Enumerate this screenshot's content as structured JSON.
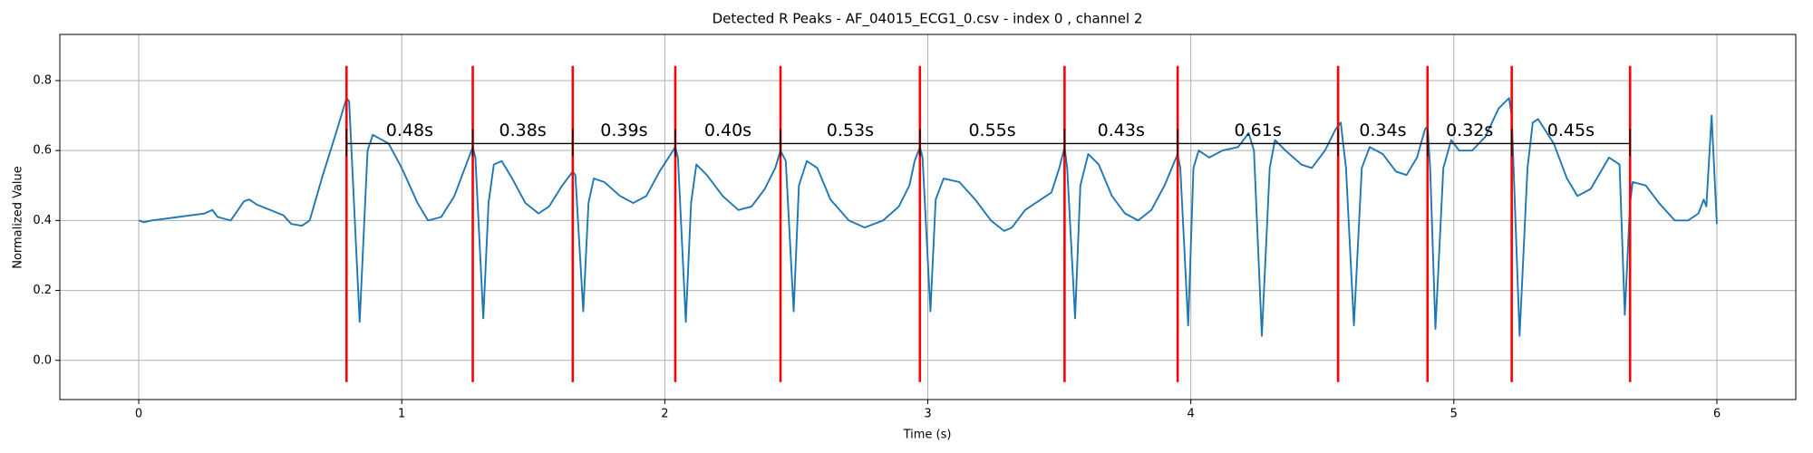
{
  "chart_data": {
    "type": "line",
    "title": "Detected R Peaks - AF_04015_ECG1_0.csv - index 0 , channel 2",
    "x_label": "Time (s)",
    "y_label": "Normalized Value",
    "xlim": [
      -0.3,
      6.3
    ],
    "ylim": [
      -0.112,
      0.932
    ],
    "xticks": [
      0,
      1,
      2,
      3,
      4,
      5,
      6
    ],
    "yticks": [
      {
        "value": 0,
        "label": "0.0"
      },
      0.2,
      0.4,
      0.6,
      0.8
    ],
    "grid": true,
    "series": [
      {
        "color": "#1f77b4",
        "x": [
          0,
          0.02,
          0.05,
          0.1,
          0.15,
          0.2,
          0.25,
          0.28,
          0.3,
          0.35,
          0.4,
          0.42,
          0.45,
          0.5,
          0.55,
          0.58,
          0.62,
          0.65,
          0.7,
          0.75,
          0.79,
          0.8,
          0.84,
          0.87,
          0.89,
          0.95,
          1.0,
          1.06,
          1.1,
          1.15,
          1.2,
          1.24,
          1.27,
          1.28,
          1.31,
          1.33,
          1.35,
          1.38,
          1.42,
          1.47,
          1.52,
          1.56,
          1.61,
          1.65,
          1.66,
          1.69,
          1.71,
          1.73,
          1.77,
          1.83,
          1.88,
          1.93,
          1.98,
          2.04,
          2.05,
          2.08,
          2.1,
          2.12,
          2.16,
          2.22,
          2.28,
          2.33,
          2.38,
          2.42,
          2.44,
          2.46,
          2.49,
          2.51,
          2.54,
          2.58,
          2.63,
          2.7,
          2.76,
          2.83,
          2.89,
          2.93,
          2.95,
          2.97,
          2.98,
          3.01,
          3.03,
          3.06,
          3.12,
          3.18,
          3.24,
          3.29,
          3.32,
          3.37,
          3.43,
          3.47,
          3.5,
          3.52,
          3.53,
          3.56,
          3.58,
          3.61,
          3.65,
          3.7,
          3.75,
          3.8,
          3.85,
          3.9,
          3.95,
          3.96,
          3.99,
          4.01,
          4.03,
          4.07,
          4.12,
          4.18,
          4.22,
          4.24,
          4.27,
          4.3,
          4.32,
          4.36,
          4.42,
          4.46,
          4.51,
          4.55,
          4.57,
          4.59,
          4.62,
          4.65,
          4.68,
          4.73,
          4.78,
          4.82,
          4.86,
          4.89,
          4.9,
          4.91,
          4.93,
          4.96,
          4.99,
          5.02,
          5.07,
          5.12,
          5.17,
          5.21,
          5.22,
          5.25,
          5.28,
          5.3,
          5.32,
          5.38,
          5.43,
          5.47,
          5.52,
          5.59,
          5.63,
          5.65,
          5.67,
          5.68,
          5.73,
          5.78,
          5.84,
          5.89,
          5.93,
          5.95,
          5.96,
          5.98,
          6.0
        ],
        "values": [
          0.4,
          0.395,
          0.4,
          0.405,
          0.41,
          0.415,
          0.42,
          0.43,
          0.41,
          0.4,
          0.455,
          0.46,
          0.445,
          0.43,
          0.415,
          0.39,
          0.385,
          0.4,
          0.53,
          0.65,
          0.75,
          0.74,
          0.11,
          0.6,
          0.645,
          0.62,
          0.55,
          0.45,
          0.4,
          0.41,
          0.47,
          0.55,
          0.61,
          0.58,
          0.12,
          0.45,
          0.56,
          0.57,
          0.52,
          0.45,
          0.42,
          0.44,
          0.5,
          0.54,
          0.53,
          0.14,
          0.45,
          0.52,
          0.51,
          0.47,
          0.45,
          0.47,
          0.54,
          0.61,
          0.58,
          0.11,
          0.45,
          0.56,
          0.53,
          0.47,
          0.43,
          0.44,
          0.49,
          0.55,
          0.6,
          0.57,
          0.14,
          0.5,
          0.57,
          0.55,
          0.46,
          0.4,
          0.38,
          0.4,
          0.44,
          0.5,
          0.57,
          0.61,
          0.58,
          0.14,
          0.46,
          0.52,
          0.51,
          0.46,
          0.4,
          0.37,
          0.38,
          0.43,
          0.46,
          0.48,
          0.55,
          0.61,
          0.55,
          0.12,
          0.5,
          0.59,
          0.56,
          0.47,
          0.42,
          0.4,
          0.43,
          0.5,
          0.59,
          0.55,
          0.1,
          0.55,
          0.6,
          0.58,
          0.6,
          0.61,
          0.65,
          0.6,
          0.07,
          0.55,
          0.63,
          0.6,
          0.56,
          0.55,
          0.6,
          0.66,
          0.68,
          0.55,
          0.1,
          0.55,
          0.61,
          0.59,
          0.54,
          0.53,
          0.58,
          0.66,
          0.67,
          0.55,
          0.09,
          0.55,
          0.63,
          0.6,
          0.6,
          0.64,
          0.72,
          0.75,
          0.7,
          0.07,
          0.55,
          0.68,
          0.69,
          0.62,
          0.52,
          0.47,
          0.49,
          0.58,
          0.56,
          0.13,
          0.45,
          0.51,
          0.5,
          0.45,
          0.4,
          0.4,
          0.42,
          0.46,
          0.44,
          0.7,
          0.39
        ]
      }
    ],
    "peaks": {
      "color": "#ff0000",
      "ymin": -0.062,
      "ymax": 0.842,
      "x": [
        0.79,
        1.27,
        1.65,
        2.04,
        2.44,
        2.97,
        3.52,
        3.95,
        4.56,
        4.9,
        5.22,
        5.67
      ]
    },
    "bracket_y": 0.62,
    "interval_labels": [
      "0.48s",
      "0.38s",
      "0.39s",
      "0.40s",
      "0.53s",
      "0.55s",
      "0.43s",
      "0.61s",
      "0.34s",
      "0.32s",
      "0.45s"
    ]
  }
}
